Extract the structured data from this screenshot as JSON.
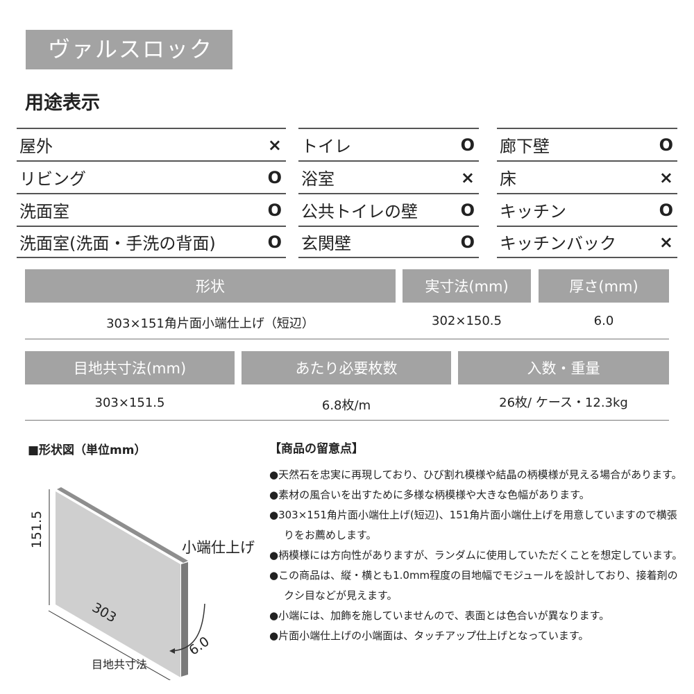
{
  "title": "ヴァルスロック",
  "usage": {
    "heading": "用途表示",
    "columns": [
      [
        {
          "label": "屋外",
          "mark": "×"
        },
        {
          "label": "リビング",
          "mark": "O"
        },
        {
          "label": "洗面室",
          "mark": "O"
        },
        {
          "label": "洗面室(洗面・手洗の背面)",
          "mark": "O"
        }
      ],
      [
        {
          "label": "トイレ",
          "mark": "O"
        },
        {
          "label": "浴室",
          "mark": "×"
        },
        {
          "label": "公共トイレの壁",
          "mark": "O"
        },
        {
          "label": "玄関壁",
          "mark": "O"
        }
      ],
      [
        {
          "label": "廊下壁",
          "mark": "O"
        },
        {
          "label": "床",
          "mark": "×"
        },
        {
          "label": "キッチン",
          "mark": "O"
        },
        {
          "label": "キッチンバック",
          "mark": "×"
        }
      ]
    ]
  },
  "spec1": {
    "headers": [
      "形状",
      "実寸法(mm)",
      "厚さ(mm)"
    ],
    "values": [
      "303×151角片面小端仕上げ（短辺）",
      "302×150.5",
      "6.0"
    ]
  },
  "spec2": {
    "headers": [
      "目地共寸法(mm)",
      "あたり必要枚数",
      "入数・重量"
    ],
    "values": [
      "303×151.5",
      "6.8枚/m",
      "26枚/ ケース・12.3kg"
    ]
  },
  "diagram": {
    "heading": "■形状図（単位mm）",
    "height": "151.5",
    "width": "303",
    "thickness": "6.0",
    "edge_label": "小端仕上げ",
    "caption": "目地共寸法"
  },
  "notes": {
    "heading": "【商品の留意点】",
    "items": [
      "●天然石を忠実に再現しており、ひび割れ模様や結晶の柄模様が見える場合があります。",
      "●素材の風合いを出すために多様な柄模様や大きな色幅があります。",
      "●303×151角片面小端仕上げ(短辺)、151角片面小端仕上げを用意していますので横張りをお薦めします。",
      "●柄模様には方向性がありますが、ランダムに使用していただくことを想定しています。",
      "●この商品は、縦・横とも1.0mm程度の目地幅でモジュールを設計しており、接着剤のクシ目などが見えます。",
      "●小端には、加飾を施していませんので、表面とは色合いが異なります。",
      "●片面小端仕上げの小端面は、タッチアップ仕上げとなっています。"
    ]
  }
}
